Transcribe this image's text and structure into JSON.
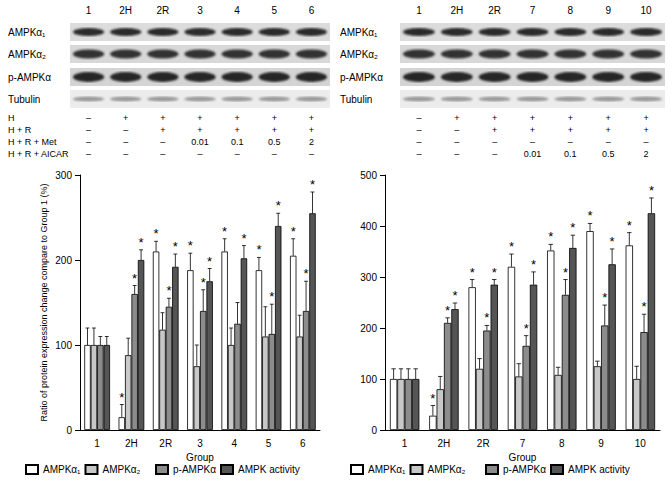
{
  "blot_panels": [
    {
      "lanes": [
        "1",
        "2H",
        "2R",
        "3",
        "4",
        "5",
        "6"
      ],
      "rows": [
        "AMPKα₁",
        "AMPKα₂",
        "p-AMPKα",
        "Tubulin"
      ]
    },
    {
      "lanes": [
        "1",
        "2H",
        "2R",
        "7",
        "8",
        "9",
        "10"
      ],
      "rows": [
        "AMPKα₁",
        "AMPKα₂",
        "p-AMPKα",
        "Tubulin"
      ]
    }
  ],
  "treatments": {
    "rows": [
      "H",
      "H + R",
      "H + R + Met",
      "H + R + AICAR"
    ],
    "panels": [
      [
        [
          "–",
          "+",
          "+",
          "+",
          "+",
          "+",
          "+"
        ],
        [
          "–",
          "–",
          "+",
          "+",
          "+",
          "+",
          "+"
        ],
        [
          "–",
          "–",
          "–",
          0.01,
          0.1,
          0.5,
          2
        ],
        [
          "–",
          "–",
          "–",
          "–",
          "–",
          "–",
          "–"
        ]
      ],
      [
        [
          "–",
          "+",
          "+",
          "+",
          "+",
          "+",
          "+"
        ],
        [
          "–",
          "–",
          "+",
          "+",
          "+",
          "+",
          "+"
        ],
        [
          "–",
          "–",
          "–",
          "–",
          "–",
          "–",
          "–"
        ],
        [
          "–",
          "–",
          "–",
          0.01,
          0.1,
          0.5,
          2
        ]
      ]
    ]
  },
  "chart_data": [
    {
      "type": "bar",
      "x_label": "Group",
      "y_label": "Ratio of protein expression change compare to Group 1 (%)",
      "categories": [
        "1",
        "2H",
        "2R",
        "3",
        "4",
        "5",
        "6"
      ],
      "ylim": [
        0,
        300
      ],
      "yticks": [
        0,
        100,
        200,
        300
      ],
      "grid": false,
      "legend": "bottom",
      "annotation": "*",
      "series": [
        {
          "name": "AMPKα₁",
          "color": "#ffffff",
          "values": [
            100,
            15,
            210,
            188,
            210,
            188,
            205
          ],
          "errors": [
            20,
            15,
            12,
            20,
            15,
            15,
            20
          ],
          "significant": [
            false,
            true,
            true,
            true,
            true,
            true,
            true
          ]
        },
        {
          "name": "AMPKα₂",
          "color": "#c8c8c8",
          "values": [
            100,
            88,
            118,
            75,
            100,
            110,
            110
          ],
          "errors": [
            20,
            20,
            20,
            25,
            20,
            35,
            25
          ],
          "significant": [
            false,
            false,
            false,
            false,
            false,
            false,
            false
          ]
        },
        {
          "name": "p-AMPKα",
          "color": "#8c8c8c",
          "values": [
            100,
            160,
            145,
            140,
            125,
            113,
            140
          ],
          "errors": [
            10,
            10,
            10,
            25,
            25,
            35,
            35
          ],
          "significant": [
            false,
            true,
            true,
            true,
            false,
            true,
            true
          ]
        },
        {
          "name": "AMPK activity",
          "color": "#555555",
          "values": [
            100,
            200,
            192,
            175,
            202,
            240,
            255
          ],
          "errors": [
            10,
            12,
            15,
            15,
            15,
            15,
            25
          ],
          "significant": [
            false,
            true,
            true,
            true,
            true,
            true,
            true
          ]
        }
      ]
    },
    {
      "type": "bar",
      "x_label": "Group",
      "categories": [
        "1",
        "2H",
        "2R",
        "7",
        "8",
        "9",
        "10"
      ],
      "ylim": [
        0,
        500
      ],
      "yticks": [
        0,
        100,
        200,
        300,
        400,
        500
      ],
      "grid": false,
      "legend": "bottom",
      "annotation": "*",
      "series": [
        {
          "name": "AMPKα₁",
          "color": "#ffffff",
          "values": [
            100,
            28,
            280,
            320,
            352,
            390,
            362
          ],
          "errors": [
            20,
            20,
            15,
            25,
            12,
            15,
            25
          ],
          "significant": [
            false,
            true,
            true,
            true,
            true,
            true,
            true
          ]
        },
        {
          "name": "AMPKα₂",
          "color": "#c8c8c8",
          "values": [
            100,
            80,
            120,
            105,
            108,
            125,
            100
          ],
          "errors": [
            20,
            25,
            20,
            25,
            15,
            10,
            25
          ],
          "significant": [
            false,
            false,
            false,
            false,
            false,
            false,
            false
          ]
        },
        {
          "name": "p-AMPKα",
          "color": "#8c8c8c",
          "values": [
            100,
            210,
            195,
            165,
            265,
            205,
            192
          ],
          "errors": [
            20,
            10,
            10,
            20,
            30,
            40,
            35
          ],
          "significant": [
            false,
            true,
            true,
            true,
            true,
            true,
            true
          ]
        },
        {
          "name": "AMPK activity",
          "color": "#555555",
          "values": [
            100,
            237,
            285,
            285,
            357,
            325,
            425
          ],
          "errors": [
            20,
            12,
            10,
            25,
            25,
            30,
            30
          ],
          "significant": [
            false,
            true,
            true,
            true,
            true,
            true,
            true
          ]
        }
      ]
    }
  ]
}
